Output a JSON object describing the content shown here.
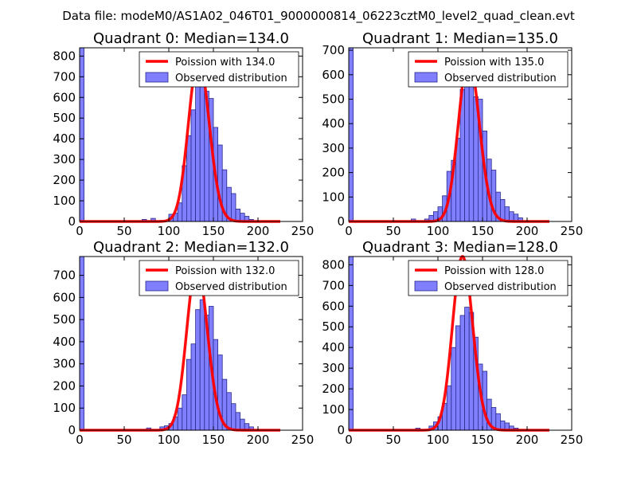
{
  "figure_title": "Data file: modeM0/AS1A02_046T01_9000000814_06223cztM0_level2_quad_clean.evt",
  "colors": {
    "poisson": "#ff0000",
    "bars": "#7f7fff",
    "bar_edge": "#2a2a8a",
    "axes": "#000000"
  },
  "chart_data": [
    {
      "type": "bar",
      "title": "Quadrant 0: Median=134.0",
      "xlim": [
        0,
        250
      ],
      "ylim": [
        0,
        840
      ],
      "xticks": [
        0,
        50,
        100,
        150,
        200,
        250
      ],
      "yticks": [
        0,
        100,
        200,
        300,
        400,
        500,
        600,
        700,
        800
      ],
      "legend": {
        "location": "upper right",
        "entries": [
          "Poission with 134.0",
          "Observed distribution"
        ]
      },
      "poisson_mean": 134.0,
      "poisson_peak": 790,
      "bin_width": 5,
      "bins": [
        [
          0,
          840
        ],
        [
          70,
          10
        ],
        [
          80,
          15
        ],
        [
          95,
          5
        ],
        [
          100,
          35
        ],
        [
          105,
          40
        ],
        [
          110,
          90
        ],
        [
          115,
          270
        ],
        [
          120,
          415
        ],
        [
          125,
          540
        ],
        [
          130,
          680
        ],
        [
          135,
          715
        ],
        [
          140,
          630
        ],
        [
          145,
          595
        ],
        [
          150,
          455
        ],
        [
          155,
          370
        ],
        [
          160,
          250
        ],
        [
          165,
          165
        ],
        [
          170,
          135
        ],
        [
          175,
          60
        ],
        [
          180,
          40
        ],
        [
          185,
          25
        ],
        [
          190,
          10
        ]
      ]
    },
    {
      "type": "bar",
      "title": "Quadrant 1: Median=135.0",
      "xlim": [
        0,
        250
      ],
      "ylim": [
        0,
        710
      ],
      "xticks": [
        0,
        50,
        100,
        150,
        200,
        250
      ],
      "yticks": [
        0,
        100,
        200,
        300,
        400,
        500,
        600,
        700
      ],
      "legend": {
        "location": "upper right",
        "entries": [
          "Poission with 135.0",
          "Observed distribution"
        ]
      },
      "poisson_mean": 135.0,
      "poisson_peak": 670,
      "bin_width": 5,
      "bins": [
        [
          0,
          710
        ],
        [
          70,
          10
        ],
        [
          85,
          10
        ],
        [
          90,
          25
        ],
        [
          95,
          40
        ],
        [
          100,
          60
        ],
        [
          105,
          105
        ],
        [
          110,
          205
        ],
        [
          115,
          250
        ],
        [
          120,
          340
        ],
        [
          125,
          540
        ],
        [
          130,
          570
        ],
        [
          135,
          625
        ],
        [
          140,
          510
        ],
        [
          145,
          500
        ],
        [
          150,
          370
        ],
        [
          155,
          255
        ],
        [
          160,
          210
        ],
        [
          165,
          120
        ],
        [
          170,
          90
        ],
        [
          175,
          60
        ],
        [
          180,
          40
        ],
        [
          185,
          30
        ],
        [
          190,
          15
        ]
      ]
    },
    {
      "type": "bar",
      "title": "Quadrant 2: Median=132.0",
      "xlim": [
        0,
        250
      ],
      "ylim": [
        0,
        785
      ],
      "xticks": [
        0,
        50,
        100,
        150,
        200,
        250
      ],
      "yticks": [
        0,
        100,
        200,
        300,
        400,
        500,
        600,
        700
      ],
      "legend": {
        "location": "upper right",
        "entries": [
          "Poission with 132.0",
          "Observed distribution"
        ]
      },
      "poisson_mean": 132.0,
      "poisson_peak": 750,
      "bin_width": 5,
      "bins": [
        [
          0,
          785
        ],
        [
          75,
          10
        ],
        [
          90,
          15
        ],
        [
          95,
          20
        ],
        [
          100,
          30
        ],
        [
          105,
          60
        ],
        [
          110,
          100
        ],
        [
          115,
          160
        ],
        [
          120,
          320
        ],
        [
          125,
          390
        ],
        [
          130,
          545
        ],
        [
          135,
          590
        ],
        [
          140,
          520
        ],
        [
          145,
          560
        ],
        [
          150,
          410
        ],
        [
          155,
          340
        ],
        [
          160,
          230
        ],
        [
          165,
          170
        ],
        [
          170,
          120
        ],
        [
          175,
          80
        ],
        [
          180,
          50
        ],
        [
          185,
          30
        ],
        [
          190,
          15
        ]
      ]
    },
    {
      "type": "bar",
      "title": "Quadrant 3: Median=128.0",
      "xlim": [
        0,
        250
      ],
      "ylim": [
        0,
        840
      ],
      "xticks": [
        0,
        50,
        100,
        150,
        200,
        250
      ],
      "yticks": [
        0,
        100,
        200,
        300,
        400,
        500,
        600,
        700,
        800
      ],
      "legend": {
        "location": "upper right",
        "entries": [
          "Poission with 128.0",
          "Observed distribution"
        ]
      },
      "poisson_mean": 128.0,
      "poisson_peak": 840,
      "bin_width": 5,
      "bins": [
        [
          0,
          840
        ],
        [
          75,
          10
        ],
        [
          90,
          20
        ],
        [
          95,
          40
        ],
        [
          100,
          65
        ],
        [
          105,
          130
        ],
        [
          110,
          215
        ],
        [
          115,
          400
        ],
        [
          120,
          505
        ],
        [
          125,
          555
        ],
        [
          130,
          595
        ],
        [
          135,
          570
        ],
        [
          140,
          450
        ],
        [
          145,
          320
        ],
        [
          150,
          285
        ],
        [
          155,
          150
        ],
        [
          160,
          110
        ],
        [
          165,
          80
        ],
        [
          170,
          45
        ],
        [
          175,
          35
        ],
        [
          180,
          20
        ],
        [
          185,
          10
        ]
      ]
    }
  ]
}
